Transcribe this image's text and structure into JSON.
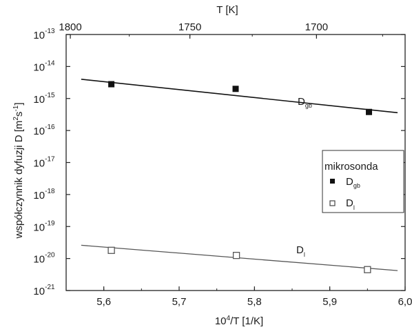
{
  "chart_data": {
    "type": "scatter",
    "xlabel": "10",
    "xlabel_sup": "4",
    "xlabel_rest": "/T [1/K]",
    "x_ticks": [
      "5,6",
      "5,7",
      "5,8",
      "5,9",
      "6,0"
    ],
    "xlim": [
      5.55,
      6.0
    ],
    "top_axis_label": "T [K]",
    "top_axis_ticks": [
      {
        "label": "1800",
        "T": 1800
      },
      {
        "label": "1750",
        "T": 1750
      },
      {
        "label": "1700",
        "T": 1700
      }
    ],
    "ylabel": "współczynnik dyfuzji D [m",
    "ylabel_sup1": "2",
    "ylabel_mid": "s",
    "ylabel_sup2": "-1",
    "ylabel_end": "]",
    "y_scale": "log",
    "ylim_exp": [
      -21,
      -13
    ],
    "y_ticks": [
      {
        "base": "10",
        "exp": "-13",
        "e": -13
      },
      {
        "base": "10",
        "exp": "-14",
        "e": -14
      },
      {
        "base": "10",
        "exp": "-15",
        "e": -15
      },
      {
        "base": "10",
        "exp": "-16",
        "e": -16
      },
      {
        "base": "10",
        "exp": "-17",
        "e": -17
      },
      {
        "base": "10",
        "exp": "-18",
        "e": -18
      },
      {
        "base": "10",
        "exp": "-19",
        "e": -19
      },
      {
        "base": "10",
        "exp": "-20",
        "e": -20
      },
      {
        "base": "10",
        "exp": "-21",
        "e": -21
      }
    ],
    "grid": false,
    "legend": {
      "title": "mikrosonda",
      "placement": "right",
      "entries": [
        {
          "main": "D",
          "sub": "gb",
          "marker": "filled-square"
        },
        {
          "main": "D",
          "sub": "l",
          "marker": "open-square"
        }
      ]
    },
    "series": [
      {
        "name": "Dgb",
        "marker": "filled-square",
        "color": "#111111",
        "label": {
          "main": "D",
          "sub": "gb"
        },
        "points": [
          {
            "x": 5.61,
            "y": 2.8e-15
          },
          {
            "x": 5.775,
            "y": 2e-15
          },
          {
            "x": 5.952,
            "y": 3.8e-16
          }
        ],
        "fit_line": {
          "x": [
            5.57,
            5.99
          ],
          "y": [
            4e-15,
            3.6e-16
          ]
        }
      },
      {
        "name": "Dl",
        "marker": "open-square",
        "color": "#555555",
        "label": {
          "main": "D",
          "sub": "l"
        },
        "points": [
          {
            "x": 5.61,
            "y": 1.8e-20
          },
          {
            "x": 5.776,
            "y": 1.25e-20
          },
          {
            "x": 5.95,
            "y": 4.5e-21
          }
        ],
        "fit_line": {
          "x": [
            5.57,
            5.99
          ],
          "y": [
            2.6e-20,
            4.2e-21
          ]
        }
      }
    ]
  }
}
